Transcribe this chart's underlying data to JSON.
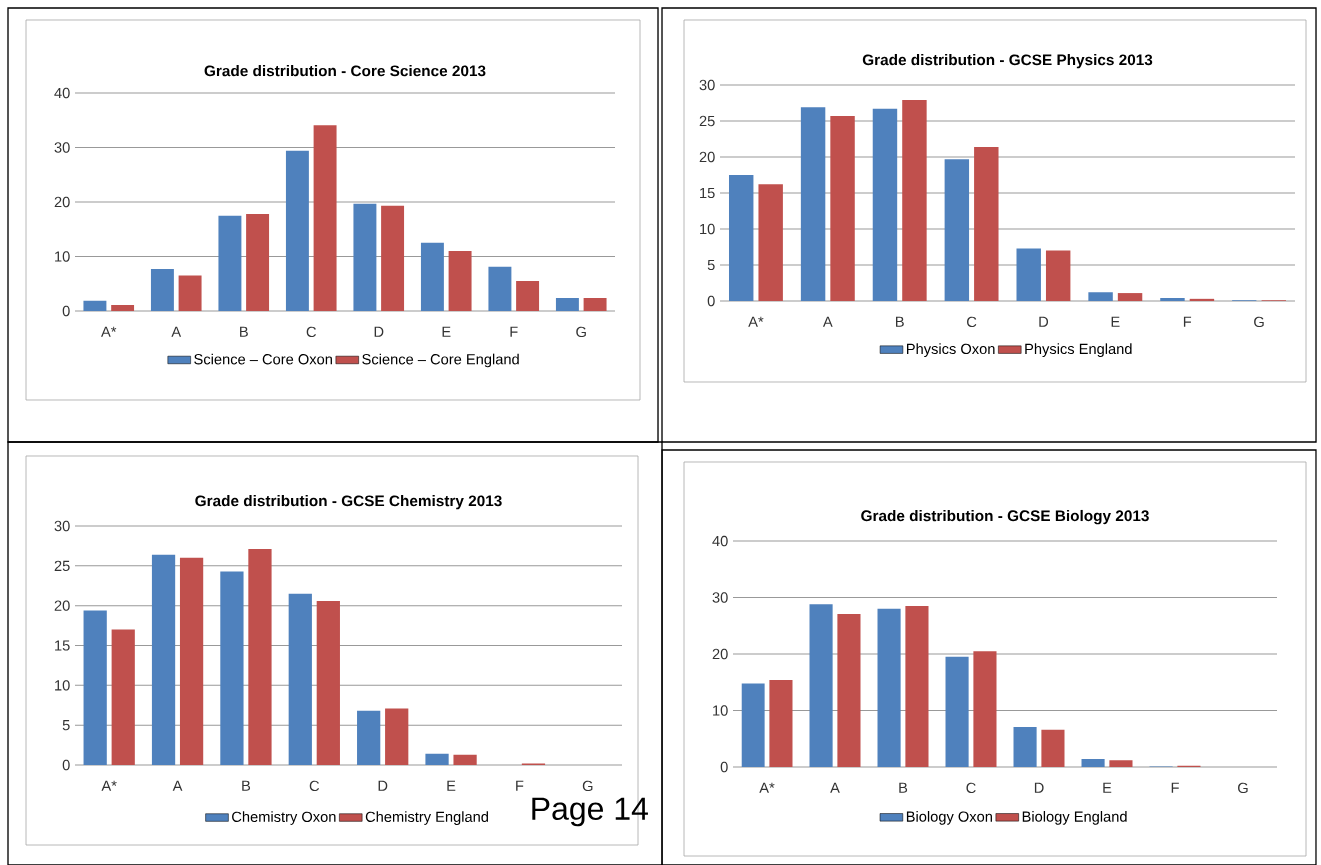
{
  "chart_data": [
    {
      "type": "bar",
      "title": "Grade distribution - Core Science 2013",
      "categories": [
        "A*",
        "A",
        "B",
        "C",
        "D",
        "E",
        "F",
        "G"
      ],
      "series": [
        {
          "name": "Science – Core Oxon",
          "color": "#4f81bd",
          "values": [
            1.9,
            7.7,
            17.5,
            29.4,
            19.7,
            12.5,
            8.1,
            2.4
          ]
        },
        {
          "name": "Science – Core England",
          "color": "#c0504d",
          "values": [
            1.1,
            6.5,
            17.8,
            34.1,
            19.3,
            11.0,
            5.5,
            2.4
          ]
        }
      ],
      "ylim": [
        0,
        40
      ],
      "yticks": [
        0,
        10,
        20,
        30,
        40
      ],
      "grid": "y",
      "legend": "bottom"
    },
    {
      "type": "bar",
      "title": "Grade distribution - GCSE Physics 2013",
      "categories": [
        "A*",
        "A",
        "B",
        "C",
        "D",
        "E",
        "F",
        "G"
      ],
      "series": [
        {
          "name": "Physics Oxon",
          "color": "#4f81bd",
          "values": [
            17.5,
            26.9,
            26.7,
            19.7,
            7.3,
            1.2,
            0.4,
            0.1
          ]
        },
        {
          "name": "Physics England",
          "color": "#c0504d",
          "values": [
            16.2,
            25.7,
            27.9,
            21.4,
            7.0,
            1.1,
            0.3,
            0.1
          ]
        }
      ],
      "ylim": [
        0,
        30
      ],
      "yticks": [
        0,
        5,
        10,
        15,
        20,
        25,
        30
      ],
      "grid": "y",
      "legend": "bottom"
    },
    {
      "type": "bar",
      "title": "Grade distribution - GCSE Chemistry 2013",
      "categories": [
        "A*",
        "A",
        "B",
        "C",
        "D",
        "E",
        "F",
        "G"
      ],
      "series": [
        {
          "name": "Chemistry Oxon",
          "color": "#4f81bd",
          "values": [
            19.4,
            26.4,
            24.3,
            21.5,
            6.8,
            1.4,
            0,
            0
          ]
        },
        {
          "name": "Chemistry England",
          "color": "#c0504d",
          "values": [
            17.0,
            26.0,
            27.1,
            20.6,
            7.1,
            1.3,
            0.2,
            0
          ]
        }
      ],
      "ylim": [
        0,
        30
      ],
      "yticks": [
        0,
        5,
        10,
        15,
        20,
        25,
        30
      ],
      "grid": "y",
      "legend": "bottom",
      "annotations": [
        "Page 14"
      ]
    },
    {
      "type": "bar",
      "title": "Grade distribution - GCSE Biology 2013",
      "categories": [
        "A*",
        "A",
        "B",
        "C",
        "D",
        "E",
        "F",
        "G"
      ],
      "series": [
        {
          "name": "Biology Oxon",
          "color": "#4f81bd",
          "values": [
            14.8,
            28.8,
            28.0,
            19.5,
            7.1,
            1.4,
            0.1,
            0
          ]
        },
        {
          "name": "Biology England",
          "color": "#c0504d",
          "values": [
            15.4,
            27.1,
            28.5,
            20.5,
            6.6,
            1.2,
            0.2,
            0
          ]
        }
      ],
      "ylim": [
        0,
        40
      ],
      "yticks": [
        0,
        10,
        20,
        30,
        40
      ],
      "grid": "y",
      "legend": "bottom"
    }
  ]
}
